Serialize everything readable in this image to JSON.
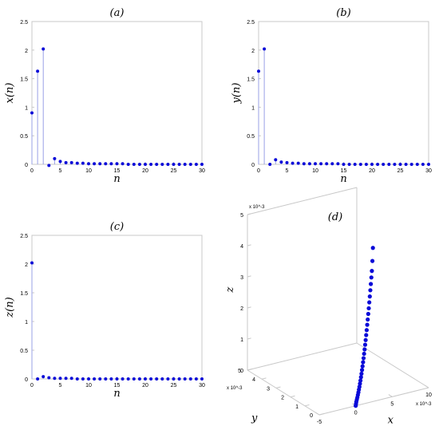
{
  "chart_data": [
    {
      "type": "stem",
      "panel_label": "(a)",
      "xlabel": "n",
      "ylabel": "x(n)",
      "xlim": [
        0,
        30
      ],
      "ylim": [
        0,
        2.5
      ],
      "xticks": [
        "0",
        "5",
        "10",
        "15",
        "20",
        "25",
        "30"
      ],
      "yticks": [
        "0",
        "0.5",
        "1",
        "1.5",
        "2",
        "2.5"
      ],
      "x": [
        0,
        1,
        2,
        3,
        4,
        5,
        6,
        7,
        8,
        9,
        10,
        11,
        12,
        13,
        14,
        15,
        16,
        17,
        18,
        19,
        20,
        21,
        22,
        23,
        24,
        25,
        26,
        27,
        28,
        29,
        30
      ],
      "values": [
        0.9,
        1.63,
        2.02,
        -0.02,
        0.1,
        0.05,
        0.03,
        0.03,
        0.02,
        0.02,
        0.01,
        0.01,
        0.01,
        0.01,
        0.01,
        0.01,
        0.01,
        0.0,
        0.0,
        0.0,
        0.0,
        0.0,
        0.0,
        0.0,
        0.0,
        0.0,
        0.0,
        0.0,
        0.0,
        0.0,
        0.0
      ]
    },
    {
      "type": "stem",
      "panel_label": "(b)",
      "xlabel": "n",
      "ylabel": "y(n)",
      "xlim": [
        0,
        30
      ],
      "ylim": [
        0,
        2.5
      ],
      "xticks": [
        "0",
        "5",
        "10",
        "15",
        "20",
        "25",
        "30"
      ],
      "yticks": [
        "0",
        "0.5",
        "1",
        "1.5",
        "2",
        "2.5"
      ],
      "x": [
        0,
        1,
        2,
        3,
        4,
        5,
        6,
        7,
        8,
        9,
        10,
        11,
        12,
        13,
        14,
        15,
        16,
        17,
        18,
        19,
        20,
        21,
        22,
        23,
        24,
        25,
        26,
        27,
        28,
        29,
        30
      ],
      "values": [
        1.63,
        2.02,
        0.0,
        0.08,
        0.04,
        0.03,
        0.02,
        0.02,
        0.01,
        0.01,
        0.01,
        0.01,
        0.01,
        0.01,
        0.01,
        0.0,
        0.0,
        0.0,
        0.0,
        0.0,
        0.0,
        0.0,
        0.0,
        0.0,
        0.0,
        0.0,
        0.0,
        0.0,
        0.0,
        0.0,
        0.0
      ]
    },
    {
      "type": "stem",
      "panel_label": "(c)",
      "xlabel": "n",
      "ylabel": "z(n)",
      "xlim": [
        0,
        30
      ],
      "ylim": [
        0,
        2.5
      ],
      "xticks": [
        "0",
        "5",
        "10",
        "15",
        "20",
        "25",
        "30"
      ],
      "yticks": [
        "0",
        "0.5",
        "1",
        "1.5",
        "2",
        "2.5"
      ],
      "x": [
        0,
        1,
        2,
        3,
        4,
        5,
        6,
        7,
        8,
        9,
        10,
        11,
        12,
        13,
        14,
        15,
        16,
        17,
        18,
        19,
        20,
        21,
        22,
        23,
        24,
        25,
        26,
        27,
        28,
        29,
        30
      ],
      "values": [
        2.02,
        0.0,
        0.04,
        0.02,
        0.01,
        0.01,
        0.01,
        0.01,
        0.0,
        0.0,
        0.0,
        0.0,
        0.0,
        0.0,
        0.0,
        0.0,
        0.0,
        0.0,
        0.0,
        0.0,
        0.0,
        0.0,
        0.0,
        0.0,
        0.0,
        0.0,
        0.0,
        0.0,
        0.0,
        0.0,
        0.0
      ]
    },
    {
      "type": "scatter3d",
      "panel_label": "(d)",
      "xlabel": "x",
      "ylabel": "y",
      "zlabel": "z",
      "x_scale_label": "x 10^-3",
      "y_scale_label": "x 10^-3",
      "z_scale_label": "x 10^-3",
      "xticks": [
        "-5",
        "0",
        "5",
        "10"
      ],
      "yticks": [
        "0",
        "1",
        "2",
        "3",
        "4",
        "5"
      ],
      "zticks": [
        "0",
        "1",
        "2",
        "3",
        "4",
        "5"
      ],
      "xlim": [
        -5,
        10
      ],
      "ylim": [
        0,
        5
      ],
      "zlim": [
        0,
        5
      ],
      "points": {
        "x": [
          0.0,
          0.1,
          0.2,
          0.35,
          0.5,
          0.65,
          0.8,
          0.95,
          1.1,
          1.25,
          1.4,
          1.55,
          1.7,
          1.85,
          2.0,
          2.15,
          2.3,
          2.45,
          2.6,
          2.75,
          2.9,
          3.05,
          3.2,
          3.35,
          3.5,
          3.65,
          3.8,
          3.95,
          4.1,
          4.25,
          4.4,
          4.55,
          4.7,
          4.85,
          5.0
        ],
        "y": [
          0.0,
          0.03,
          0.06,
          0.1,
          0.14,
          0.18,
          0.22,
          0.26,
          0.3,
          0.34,
          0.38,
          0.42,
          0.46,
          0.5,
          0.54,
          0.58,
          0.62,
          0.66,
          0.7,
          0.74,
          0.78,
          0.82,
          0.86,
          0.9,
          0.94,
          0.98,
          1.02,
          1.06,
          1.1,
          1.14,
          1.18,
          1.22,
          1.26,
          1.3,
          1.34
        ],
        "z": [
          0.0,
          0.05,
          0.1,
          0.15,
          0.2,
          0.26,
          0.32,
          0.39,
          0.46,
          0.54,
          0.62,
          0.71,
          0.8,
          0.9,
          1.0,
          1.11,
          1.22,
          1.34,
          1.46,
          1.59,
          1.72,
          1.86,
          2.0,
          2.15,
          2.3,
          2.46,
          2.62,
          2.79,
          2.96,
          3.14,
          3.32,
          3.51,
          3.7,
          4.0,
          4.4
        ]
      }
    }
  ],
  "colors": {
    "marker": "#0a0ad8",
    "stem": "#9aa0e6",
    "axis": "#c8c8c8",
    "text": "#000000"
  }
}
